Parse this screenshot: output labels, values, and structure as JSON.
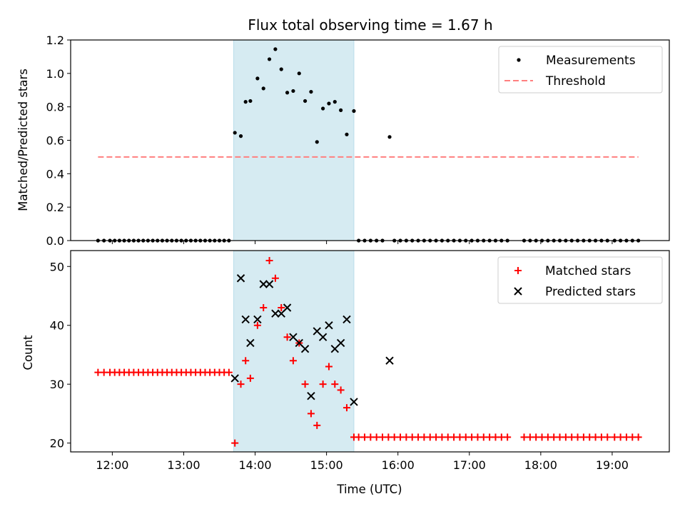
{
  "chart_data": [
    {
      "type": "scatter",
      "title": "Flux total observing time = 1.67 h",
      "xlabel": "",
      "ylabel": "Matched/Predicted stars",
      "xlim": [
        "11:25",
        "19:48"
      ],
      "ylim": [
        0,
        1.2
      ],
      "yticks": [
        "0.0",
        "0.2",
        "0.4",
        "0.6",
        "0.8",
        "1.0",
        "1.2"
      ],
      "legend_position": "upper-right",
      "highlight_span": [
        "13:42",
        "15:23"
      ],
      "series": [
        {
          "name": "Measurements",
          "kind": "points",
          "color": "#000000",
          "points": [
            [
              "11:48",
              0
            ],
            [
              "11:53",
              0
            ],
            [
              "11:58",
              0
            ],
            [
              "12:02",
              0
            ],
            [
              "12:06",
              0
            ],
            [
              "12:10",
              0
            ],
            [
              "12:14",
              0
            ],
            [
              "12:18",
              0
            ],
            [
              "12:22",
              0
            ],
            [
              "12:26",
              0
            ],
            [
              "12:30",
              0
            ],
            [
              "12:34",
              0
            ],
            [
              "12:38",
              0
            ],
            [
              "12:42",
              0
            ],
            [
              "12:46",
              0
            ],
            [
              "12:50",
              0
            ],
            [
              "12:54",
              0
            ],
            [
              "12:58",
              0
            ],
            [
              "13:02",
              0
            ],
            [
              "13:06",
              0
            ],
            [
              "13:10",
              0
            ],
            [
              "13:14",
              0
            ],
            [
              "13:18",
              0
            ],
            [
              "13:22",
              0
            ],
            [
              "13:26",
              0
            ],
            [
              "13:30",
              0
            ],
            [
              "13:34",
              0
            ],
            [
              "13:38",
              0
            ],
            [
              "13:43",
              0.645
            ],
            [
              "13:48",
              0.625
            ],
            [
              "13:52",
              0.83
            ],
            [
              "13:56",
              0.835
            ],
            [
              "14:02",
              0.97
            ],
            [
              "14:07",
              0.91
            ],
            [
              "14:12",
              1.085
            ],
            [
              "14:17",
              1.145
            ],
            [
              "14:22",
              1.025
            ],
            [
              "14:27",
              0.885
            ],
            [
              "14:32",
              0.895
            ],
            [
              "14:37",
              1.0
            ],
            [
              "14:42",
              0.835
            ],
            [
              "14:47",
              0.89
            ],
            [
              "14:52",
              0.59
            ],
            [
              "14:57",
              0.79
            ],
            [
              "15:02",
              0.82
            ],
            [
              "15:07",
              0.83
            ],
            [
              "15:12",
              0.78
            ],
            [
              "15:17",
              0.635
            ],
            [
              "15:23",
              0.775
            ],
            [
              "15:27",
              0
            ],
            [
              "15:32",
              0
            ],
            [
              "15:37",
              0
            ],
            [
              "15:42",
              0
            ],
            [
              "15:47",
              0
            ],
            [
              "15:53",
              0.62
            ],
            [
              "15:57",
              0
            ],
            [
              "16:02",
              0
            ],
            [
              "16:07",
              0
            ],
            [
              "16:12",
              0
            ],
            [
              "16:17",
              0
            ],
            [
              "16:22",
              0
            ],
            [
              "16:27",
              0
            ],
            [
              "16:32",
              0
            ],
            [
              "16:37",
              0
            ],
            [
              "16:42",
              0
            ],
            [
              "16:47",
              0
            ],
            [
              "16:52",
              0
            ],
            [
              "16:57",
              0
            ],
            [
              "17:02",
              0
            ],
            [
              "17:07",
              0
            ],
            [
              "17:12",
              0
            ],
            [
              "17:17",
              0
            ],
            [
              "17:22",
              0
            ],
            [
              "17:27",
              0
            ],
            [
              "17:32",
              0
            ],
            [
              "17:46",
              0
            ],
            [
              "17:51",
              0
            ],
            [
              "17:56",
              0
            ],
            [
              "18:01",
              0
            ],
            [
              "18:06",
              0
            ],
            [
              "18:11",
              0
            ],
            [
              "18:16",
              0
            ],
            [
              "18:21",
              0
            ],
            [
              "18:26",
              0
            ],
            [
              "18:31",
              0
            ],
            [
              "18:36",
              0
            ],
            [
              "18:41",
              0
            ],
            [
              "18:46",
              0
            ],
            [
              "18:51",
              0
            ],
            [
              "18:56",
              0
            ],
            [
              "19:02",
              0
            ],
            [
              "19:07",
              0
            ],
            [
              "19:12",
              0
            ],
            [
              "19:17",
              0
            ],
            [
              "19:22",
              0
            ]
          ]
        },
        {
          "name": "Threshold",
          "kind": "dashed-line",
          "color": "#ff7f7f",
          "points": [
            [
              "11:48",
              0.5
            ],
            [
              "19:22",
              0.5
            ]
          ]
        }
      ]
    },
    {
      "type": "scatter",
      "xlabel": "Time (UTC)",
      "ylabel": "Count",
      "xlim": [
        "11:25",
        "19:48"
      ],
      "ylim": [
        18.5,
        52.7
      ],
      "yticks": [
        "20",
        "30",
        "40",
        "50"
      ],
      "xticks": [
        "12:00",
        "13:00",
        "14:00",
        "15:00",
        "16:00",
        "17:00",
        "18:00",
        "19:00"
      ],
      "legend_position": "upper-right",
      "highlight_span": [
        "13:42",
        "15:23"
      ],
      "series": [
        {
          "name": "Matched stars",
          "kind": "plus",
          "color": "#ff0000",
          "points": [
            [
              "11:48",
              32
            ],
            [
              "11:53",
              32
            ],
            [
              "11:58",
              32
            ],
            [
              "12:02",
              32
            ],
            [
              "12:06",
              32
            ],
            [
              "12:10",
              32
            ],
            [
              "12:14",
              32
            ],
            [
              "12:18",
              32
            ],
            [
              "12:22",
              32
            ],
            [
              "12:26",
              32
            ],
            [
              "12:30",
              32
            ],
            [
              "12:34",
              32
            ],
            [
              "12:38",
              32
            ],
            [
              "12:42",
              32
            ],
            [
              "12:46",
              32
            ],
            [
              "12:50",
              32
            ],
            [
              "12:54",
              32
            ],
            [
              "12:58",
              32
            ],
            [
              "13:02",
              32
            ],
            [
              "13:06",
              32
            ],
            [
              "13:10",
              32
            ],
            [
              "13:14",
              32
            ],
            [
              "13:18",
              32
            ],
            [
              "13:22",
              32
            ],
            [
              "13:26",
              32
            ],
            [
              "13:30",
              32
            ],
            [
              "13:34",
              32
            ],
            [
              "13:38",
              32
            ],
            [
              "13:43",
              20
            ],
            [
              "13:48",
              30
            ],
            [
              "13:52",
              34
            ],
            [
              "13:56",
              31
            ],
            [
              "14:02",
              40
            ],
            [
              "14:07",
              43
            ],
            [
              "14:12",
              51
            ],
            [
              "14:17",
              48
            ],
            [
              "14:22",
              43
            ],
            [
              "14:27",
              38
            ],
            [
              "14:32",
              34
            ],
            [
              "14:37",
              37
            ],
            [
              "14:42",
              30
            ],
            [
              "14:47",
              25
            ],
            [
              "14:52",
              23
            ],
            [
              "14:57",
              30
            ],
            [
              "15:02",
              33
            ],
            [
              "15:07",
              30
            ],
            [
              "15:12",
              29
            ],
            [
              "15:17",
              26
            ],
            [
              "15:23",
              21
            ],
            [
              "15:27",
              21
            ],
            [
              "15:32",
              21
            ],
            [
              "15:37",
              21
            ],
            [
              "15:42",
              21
            ],
            [
              "15:47",
              21
            ],
            [
              "15:52",
              21
            ],
            [
              "15:57",
              21
            ],
            [
              "16:02",
              21
            ],
            [
              "16:07",
              21
            ],
            [
              "16:12",
              21
            ],
            [
              "16:17",
              21
            ],
            [
              "16:22",
              21
            ],
            [
              "16:27",
              21
            ],
            [
              "16:32",
              21
            ],
            [
              "16:37",
              21
            ],
            [
              "16:42",
              21
            ],
            [
              "16:47",
              21
            ],
            [
              "16:52",
              21
            ],
            [
              "16:57",
              21
            ],
            [
              "17:02",
              21
            ],
            [
              "17:07",
              21
            ],
            [
              "17:12",
              21
            ],
            [
              "17:17",
              21
            ],
            [
              "17:22",
              21
            ],
            [
              "17:27",
              21
            ],
            [
              "17:32",
              21
            ],
            [
              "17:46",
              21
            ],
            [
              "17:51",
              21
            ],
            [
              "17:56",
              21
            ],
            [
              "18:01",
              21
            ],
            [
              "18:06",
              21
            ],
            [
              "18:11",
              21
            ],
            [
              "18:16",
              21
            ],
            [
              "18:21",
              21
            ],
            [
              "18:26",
              21
            ],
            [
              "18:31",
              21
            ],
            [
              "18:36",
              21
            ],
            [
              "18:41",
              21
            ],
            [
              "18:46",
              21
            ],
            [
              "18:51",
              21
            ],
            [
              "18:56",
              21
            ],
            [
              "19:02",
              21
            ],
            [
              "19:07",
              21
            ],
            [
              "19:12",
              21
            ],
            [
              "19:17",
              21
            ],
            [
              "19:22",
              21
            ]
          ]
        },
        {
          "name": "Predicted stars",
          "kind": "x",
          "color": "#000000",
          "points": [
            [
              "13:43",
              31
            ],
            [
              "13:48",
              48
            ],
            [
              "13:52",
              41
            ],
            [
              "13:56",
              37
            ],
            [
              "14:02",
              41
            ],
            [
              "14:07",
              47
            ],
            [
              "14:12",
              47
            ],
            [
              "14:17",
              42
            ],
            [
              "14:22",
              42
            ],
            [
              "14:27",
              43
            ],
            [
              "14:32",
              38
            ],
            [
              "14:37",
              37
            ],
            [
              "14:42",
              36
            ],
            [
              "14:47",
              28
            ],
            [
              "14:52",
              39
            ],
            [
              "14:57",
              38
            ],
            [
              "15:02",
              40
            ],
            [
              "15:07",
              36
            ],
            [
              "15:12",
              37
            ],
            [
              "15:17",
              41
            ],
            [
              "15:23",
              27
            ],
            [
              "15:53",
              34
            ]
          ]
        }
      ]
    }
  ]
}
